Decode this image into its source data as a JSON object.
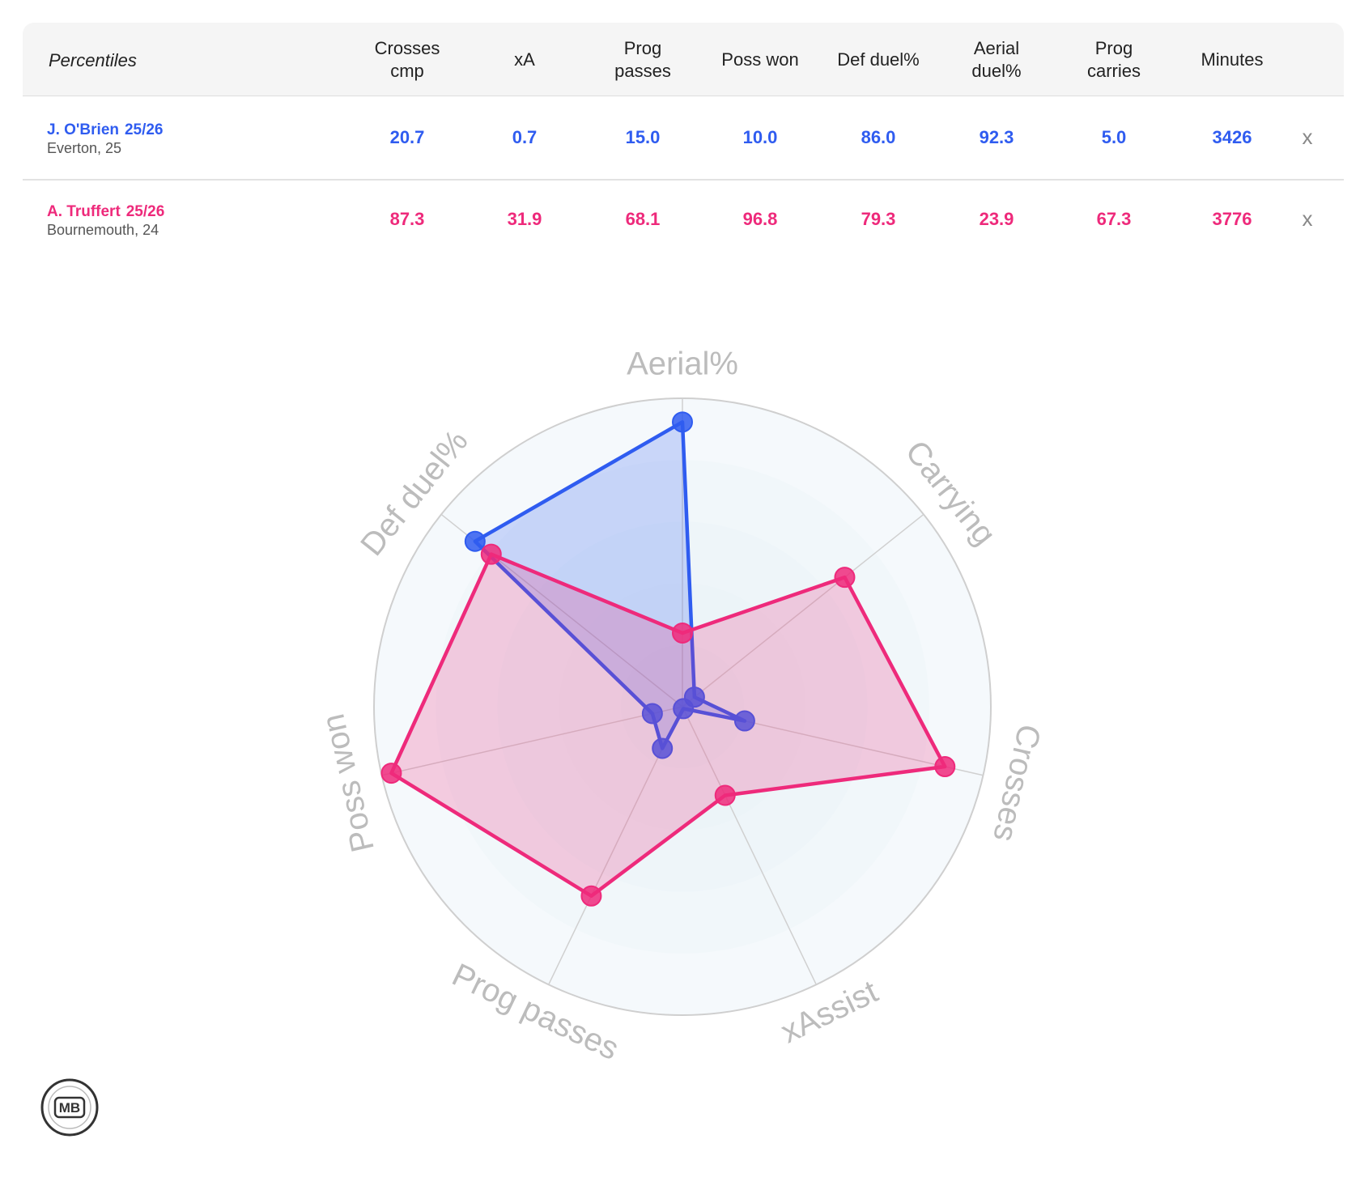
{
  "table": {
    "corner": "Percentiles",
    "headers": [
      [
        "Crosses",
        "cmp"
      ],
      [
        "xA"
      ],
      [
        "Prog",
        "passes"
      ],
      [
        "Poss won"
      ],
      [
        "Def duel%"
      ],
      [
        "Aerial",
        "duel%"
      ],
      [
        "Prog",
        "carries"
      ],
      [
        "Minutes"
      ]
    ],
    "rows": [
      {
        "name": "J. O'Brien",
        "season": "25/26",
        "club": "Everton, 25",
        "color": "#2f5cf0",
        "values": [
          "20.7",
          "0.7",
          "15.0",
          "10.0",
          "86.0",
          "92.3",
          "5.0",
          "3426"
        ],
        "remove": "x"
      },
      {
        "name": "A. Truffert",
        "season": "25/26",
        "club": "Bournemouth, 24",
        "color": "#ee2a7b",
        "values": [
          "87.3",
          "31.9",
          "68.1",
          "96.8",
          "79.3",
          "23.9",
          "67.3",
          "3776"
        ],
        "remove": "x"
      }
    ]
  },
  "chart_data": {
    "type": "radar",
    "categories": [
      "Aerial%",
      "Carrying",
      "Crosses",
      "xAssist",
      "Prog passes",
      "Poss won",
      "Def duel%"
    ],
    "rlim": [
      0,
      100
    ],
    "rticks": [
      20,
      40,
      60,
      80,
      100
    ],
    "series": [
      {
        "color": "#2f5cf0",
        "values": [
          92.3,
          5.0,
          20.7,
          0.7,
          15.0,
          10.0,
          86.0
        ]
      },
      {
        "color": "#ee2a7b",
        "values": [
          23.9,
          67.3,
          87.3,
          31.9,
          68.1,
          96.8,
          79.3
        ]
      }
    ]
  },
  "logo": "MB"
}
